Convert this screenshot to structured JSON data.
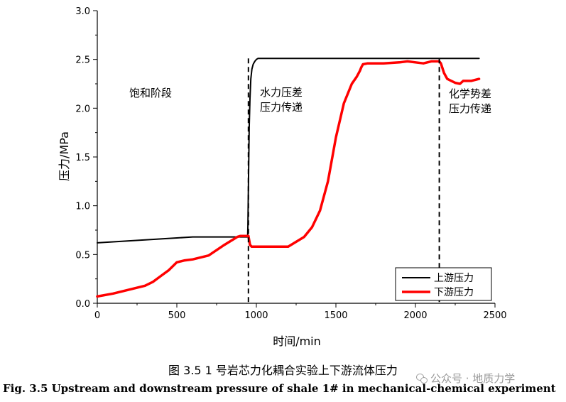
{
  "chart_data": {
    "type": "line",
    "xlabel": "时间/min",
    "ylabel": "压力/MPa",
    "xlim": [
      0,
      2500
    ],
    "ylim": [
      0,
      3.0
    ],
    "xticks": [
      "0",
      "500",
      "1000",
      "1500",
      "2000",
      "2500"
    ],
    "yticks": [
      "0.0",
      "0.5",
      "1.0",
      "1.5",
      "2.0",
      "2.5",
      "3.0"
    ],
    "grid": false,
    "legend_position": "bottom-right",
    "series": [
      {
        "name": "上游压力",
        "color": "#000000",
        "x": [
          0,
          200,
          400,
          500,
          600,
          800,
          945,
          947,
          950,
          955,
          960,
          965,
          972,
          980,
          990,
          1000,
          1010,
          1025,
          1040,
          1060,
          1100,
          1200,
          1400,
          1600,
          1800,
          2000,
          2150,
          2300,
          2400
        ],
        "y": [
          0.62,
          0.64,
          0.66,
          0.67,
          0.68,
          0.68,
          0.68,
          0.8,
          1.2,
          1.8,
          2.1,
          2.3,
          2.4,
          2.45,
          2.48,
          2.5,
          2.51,
          2.51,
          2.51,
          2.51,
          2.51,
          2.51,
          2.51,
          2.51,
          2.51,
          2.51,
          2.51,
          2.51,
          2.51
        ]
      },
      {
        "name": "下游压力",
        "color": "#ff0000",
        "x": [
          0,
          100,
          200,
          300,
          350,
          400,
          450,
          500,
          550,
          600,
          700,
          800,
          850,
          880,
          900,
          930,
          950,
          960,
          970,
          1000,
          1100,
          1200,
          1300,
          1350,
          1400,
          1450,
          1500,
          1550,
          1600,
          1630,
          1650,
          1660,
          1670,
          1700,
          1800,
          1900,
          1950,
          2000,
          2050,
          2100,
          2150,
          2160,
          2180,
          2200,
          2250,
          2280,
          2300,
          2350,
          2400
        ],
        "y": [
          0.07,
          0.1,
          0.14,
          0.18,
          0.22,
          0.28,
          0.34,
          0.42,
          0.44,
          0.45,
          0.49,
          0.6,
          0.65,
          0.68,
          0.69,
          0.69,
          0.69,
          0.6,
          0.58,
          0.58,
          0.58,
          0.58,
          0.68,
          0.78,
          0.95,
          1.25,
          1.7,
          2.05,
          2.25,
          2.32,
          2.38,
          2.42,
          2.45,
          2.46,
          2.46,
          2.47,
          2.48,
          2.47,
          2.46,
          2.48,
          2.48,
          2.46,
          2.36,
          2.3,
          2.26,
          2.25,
          2.28,
          2.28,
          2.3
        ]
      }
    ],
    "boundaries": [
      950,
      2150
    ],
    "annotations": [
      {
        "text": "饱和阶段"
      },
      {
        "text": "水力压差"
      },
      {
        "text": "压力传递"
      },
      {
        "text": "化学势差"
      },
      {
        "text": "压力传递"
      }
    ]
  },
  "caption_cn": "图 3.5 1 号岩芯力化耦合实验上下游流体压力",
  "caption_en": "Fig. 3.5 Upstream and downstream pressure of shale 1# in mechanical-chemical experiment",
  "watermark": "公众号 · 地质力学"
}
